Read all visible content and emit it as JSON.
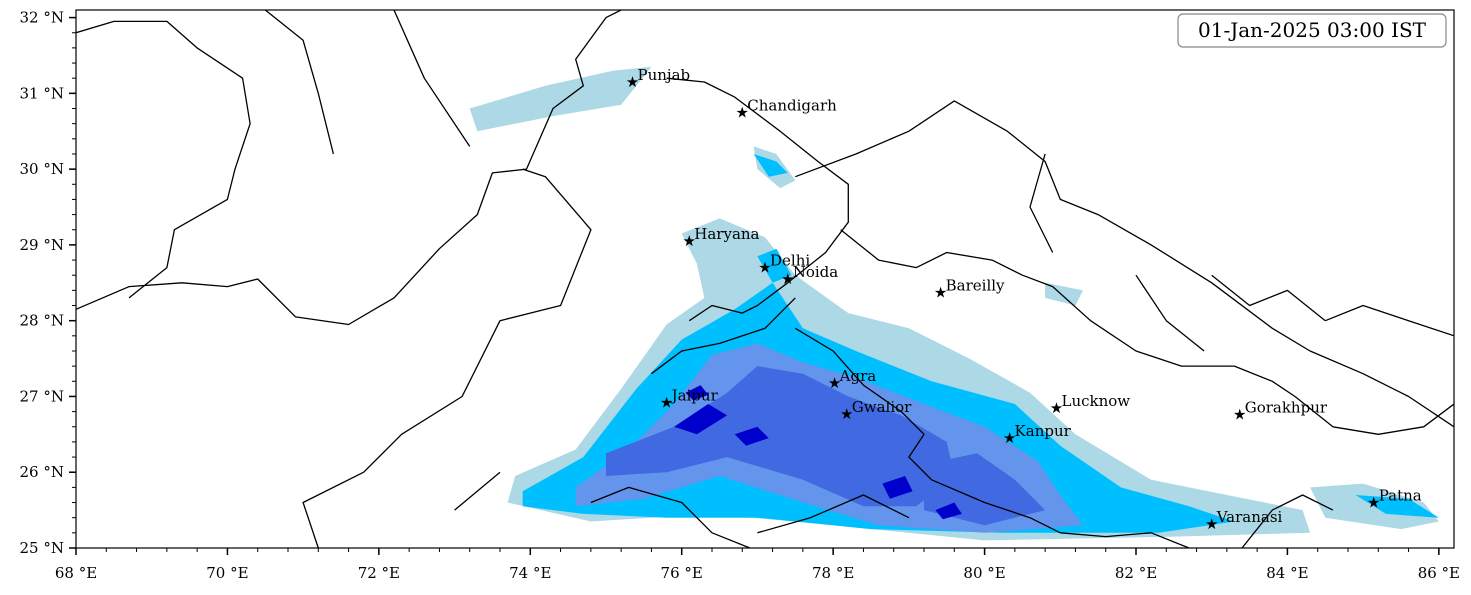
{
  "timestamp_label": "01-Jan-2025 03:00 IST",
  "colors": {
    "level1": "#add8e6",
    "level2": "#00bfff",
    "level3": "#6495ed",
    "level4": "#4169e1",
    "level5": "#0000cd",
    "boundary": "#000000"
  },
  "axes": {
    "lon_min": 68,
    "lon_max": 86.2,
    "lat_min": 25,
    "lat_max": 32.1,
    "x_ticks": [
      {
        "value": 68,
        "label": "68 °E"
      },
      {
        "value": 70,
        "label": "70 °E"
      },
      {
        "value": 72,
        "label": "72 °E"
      },
      {
        "value": 74,
        "label": "74 °E"
      },
      {
        "value": 76,
        "label": "76 °E"
      },
      {
        "value": 78,
        "label": "78 °E"
      },
      {
        "value": 80,
        "label": "80 °E"
      },
      {
        "value": 82,
        "label": "82 °E"
      },
      {
        "value": 84,
        "label": "84 °E"
      },
      {
        "value": 86,
        "label": "86 °E"
      }
    ],
    "y_ticks": [
      {
        "value": 25,
        "label": "25 °N"
      },
      {
        "value": 26,
        "label": "26 °N"
      },
      {
        "value": 27,
        "label": "27 °N"
      },
      {
        "value": 28,
        "label": "28 °N"
      },
      {
        "value": 29,
        "label": "29 °N"
      },
      {
        "value": 30,
        "label": "30 °N"
      },
      {
        "value": 31,
        "label": "31 °N"
      },
      {
        "value": 32,
        "label": "32 °N"
      }
    ]
  },
  "cities": [
    {
      "name": "Punjab",
      "lon": 75.35,
      "lat": 31.15
    },
    {
      "name": "Chandigarh",
      "lon": 76.8,
      "lat": 30.75
    },
    {
      "name": "Haryana",
      "lon": 76.1,
      "lat": 29.05
    },
    {
      "name": "Delhi",
      "lon": 77.1,
      "lat": 28.7
    },
    {
      "name": "Noida",
      "lon": 77.4,
      "lat": 28.55
    },
    {
      "name": "Bareilly",
      "lon": 79.42,
      "lat": 28.37
    },
    {
      "name": "Agra",
      "lon": 78.02,
      "lat": 27.18
    },
    {
      "name": "Jaipur",
      "lon": 75.8,
      "lat": 26.92
    },
    {
      "name": "Gwalior",
      "lon": 78.18,
      "lat": 26.77
    },
    {
      "name": "Lucknow",
      "lon": 80.95,
      "lat": 26.85
    },
    {
      "name": "Kanpur",
      "lon": 80.33,
      "lat": 26.45
    },
    {
      "name": "Gorakhpur",
      "lon": 83.37,
      "lat": 26.76
    },
    {
      "name": "Varanasi",
      "lon": 83.0,
      "lat": 25.32
    },
    {
      "name": "Patna",
      "lon": 85.14,
      "lat": 25.6
    }
  ],
  "rain_regions": [
    {
      "level": 1,
      "polygons": [
        [
          [
            73.8,
            25.95
          ],
          [
            74.6,
            26.3
          ],
          [
            75.2,
            27.1
          ],
          [
            75.8,
            27.95
          ],
          [
            76.3,
            28.3
          ],
          [
            76.2,
            28.75
          ],
          [
            76.0,
            29.15
          ],
          [
            76.5,
            29.35
          ],
          [
            77.1,
            29.1
          ],
          [
            77.5,
            28.6
          ],
          [
            78.2,
            28.1
          ],
          [
            79.0,
            27.9
          ],
          [
            79.8,
            27.5
          ],
          [
            80.6,
            27.05
          ],
          [
            81.2,
            26.5
          ],
          [
            82.2,
            25.9
          ],
          [
            83.2,
            25.7
          ],
          [
            84.2,
            25.5
          ],
          [
            84.3,
            25.2
          ],
          [
            82.5,
            25.15
          ],
          [
            80.0,
            25.1
          ],
          [
            78.0,
            25.3
          ],
          [
            76.4,
            25.45
          ],
          [
            74.8,
            25.35
          ],
          [
            73.7,
            25.6
          ]
        ],
        [
          [
            73.2,
            30.8
          ],
          [
            74.2,
            31.1
          ],
          [
            75.1,
            31.3
          ],
          [
            75.6,
            31.35
          ],
          [
            75.2,
            30.85
          ],
          [
            74.3,
            30.7
          ],
          [
            73.3,
            30.5
          ]
        ],
        [
          [
            76.95,
            30.3
          ],
          [
            77.25,
            30.2
          ],
          [
            77.5,
            29.85
          ],
          [
            77.3,
            29.75
          ],
          [
            77.0,
            30.0
          ]
        ],
        [
          [
            84.3,
            25.8
          ],
          [
            85.0,
            25.85
          ],
          [
            85.8,
            25.6
          ],
          [
            86.0,
            25.35
          ],
          [
            85.5,
            25.25
          ],
          [
            84.5,
            25.4
          ]
        ],
        [
          [
            80.8,
            28.5
          ],
          [
            81.3,
            28.4
          ],
          [
            81.2,
            28.2
          ],
          [
            80.8,
            28.3
          ]
        ]
      ]
    },
    {
      "level": 2,
      "polygons": [
        [
          [
            73.9,
            25.75
          ],
          [
            74.7,
            26.2
          ],
          [
            75.4,
            27.1
          ],
          [
            76.0,
            27.75
          ],
          [
            76.7,
            28.15
          ],
          [
            77.2,
            28.5
          ],
          [
            77.6,
            27.9
          ],
          [
            78.3,
            27.6
          ],
          [
            79.3,
            27.2
          ],
          [
            80.4,
            26.9
          ],
          [
            81.0,
            26.35
          ],
          [
            81.8,
            25.8
          ],
          [
            82.7,
            25.55
          ],
          [
            83.3,
            25.35
          ],
          [
            82.3,
            25.2
          ],
          [
            80.2,
            25.2
          ],
          [
            78.5,
            25.25
          ],
          [
            77.0,
            25.4
          ],
          [
            75.8,
            25.4
          ],
          [
            74.7,
            25.45
          ],
          [
            73.9,
            25.55
          ]
        ],
        [
          [
            77.0,
            28.85
          ],
          [
            77.25,
            28.95
          ],
          [
            77.45,
            28.6
          ],
          [
            77.2,
            28.5
          ]
        ],
        [
          [
            84.9,
            25.7
          ],
          [
            85.6,
            25.65
          ],
          [
            86.0,
            25.4
          ],
          [
            85.3,
            25.45
          ]
        ],
        [
          [
            76.95,
            30.2
          ],
          [
            77.25,
            30.1
          ],
          [
            77.4,
            29.95
          ],
          [
            77.15,
            29.9
          ]
        ]
      ]
    },
    {
      "level": 3,
      "polygons": [
        [
          [
            74.6,
            25.8
          ],
          [
            75.3,
            26.3
          ],
          [
            75.9,
            26.9
          ],
          [
            76.4,
            27.55
          ],
          [
            77.0,
            27.7
          ],
          [
            77.6,
            27.45
          ],
          [
            78.3,
            27.25
          ],
          [
            79.2,
            26.9
          ],
          [
            80.0,
            26.6
          ],
          [
            80.7,
            26.15
          ],
          [
            81.0,
            25.7
          ],
          [
            81.3,
            25.3
          ],
          [
            80.0,
            25.2
          ],
          [
            78.6,
            25.3
          ],
          [
            77.6,
            25.6
          ],
          [
            76.5,
            25.95
          ],
          [
            75.5,
            25.65
          ],
          [
            74.6,
            25.55
          ]
        ]
      ]
    },
    {
      "level": 4,
      "polygons": [
        [
          [
            75.0,
            26.25
          ],
          [
            75.9,
            26.6
          ],
          [
            76.6,
            27.05
          ],
          [
            77.0,
            27.4
          ],
          [
            77.6,
            27.3
          ],
          [
            78.2,
            27.0
          ],
          [
            78.9,
            26.75
          ],
          [
            79.5,
            26.4
          ],
          [
            79.6,
            25.95
          ],
          [
            79.1,
            25.55
          ],
          [
            78.4,
            25.55
          ],
          [
            77.6,
            25.9
          ],
          [
            76.6,
            26.2
          ],
          [
            75.8,
            26.0
          ],
          [
            75.0,
            25.95
          ]
        ],
        [
          [
            79.2,
            26.1
          ],
          [
            79.9,
            26.25
          ],
          [
            80.4,
            25.9
          ],
          [
            80.8,
            25.5
          ],
          [
            80.0,
            25.3
          ],
          [
            79.2,
            25.5
          ]
        ]
      ]
    },
    {
      "level": 5,
      "polygons": [
        [
          [
            75.9,
            26.6
          ],
          [
            76.35,
            26.9
          ],
          [
            76.6,
            26.75
          ],
          [
            76.2,
            26.5
          ]
        ],
        [
          [
            76.7,
            26.5
          ],
          [
            77.0,
            26.6
          ],
          [
            77.15,
            26.45
          ],
          [
            76.85,
            26.35
          ]
        ],
        [
          [
            78.65,
            25.85
          ],
          [
            78.95,
            25.95
          ],
          [
            79.05,
            25.75
          ],
          [
            78.75,
            25.65
          ]
        ],
        [
          [
            79.35,
            25.5
          ],
          [
            79.6,
            25.6
          ],
          [
            79.7,
            25.45
          ],
          [
            79.45,
            25.38
          ]
        ],
        [
          [
            76.05,
            27.05
          ],
          [
            76.25,
            27.15
          ],
          [
            76.35,
            27.02
          ],
          [
            76.15,
            26.95
          ]
        ]
      ]
    }
  ],
  "boundaries": [
    [
      [
        68,
        28.15
      ],
      [
        68.7,
        28.45
      ],
      [
        69.4,
        28.5
      ],
      [
        70.0,
        28.45
      ],
      [
        70.4,
        28.55
      ],
      [
        70.9,
        28.05
      ],
      [
        71.6,
        27.95
      ],
      [
        72.2,
        28.3
      ],
      [
        72.8,
        28.95
      ],
      [
        73.3,
        29.4
      ],
      [
        73.5,
        29.95
      ],
      [
        73.95,
        30.0
      ],
      [
        74.3,
        30.8
      ],
      [
        74.7,
        31.1
      ],
      [
        74.6,
        31.45
      ],
      [
        75.0,
        32.0
      ],
      [
        75.4,
        32.2
      ]
    ],
    [
      [
        68,
        31.8
      ],
      [
        68.5,
        31.95
      ],
      [
        69.2,
        31.95
      ],
      [
        69.6,
        31.6
      ],
      [
        70.2,
        31.2
      ],
      [
        70.3,
        30.6
      ],
      [
        70.1,
        30.0
      ],
      [
        70.0,
        29.6
      ],
      [
        69.3,
        29.2
      ],
      [
        69.2,
        28.7
      ],
      [
        68.7,
        28.3
      ]
    ],
    [
      [
        70.5,
        32.1
      ],
      [
        71.0,
        31.7
      ],
      [
        71.2,
        31.0
      ],
      [
        71.4,
        30.2
      ]
    ],
    [
      [
        72.2,
        32.1
      ],
      [
        72.6,
        31.2
      ],
      [
        73.2,
        30.3
      ]
    ],
    [
      [
        71.2,
        25.0
      ],
      [
        71.0,
        25.6
      ],
      [
        71.8,
        26.0
      ],
      [
        72.3,
        26.5
      ],
      [
        73.1,
        27.0
      ],
      [
        73.6,
        28.0
      ],
      [
        74.4,
        28.2
      ],
      [
        74.8,
        29.2
      ],
      [
        74.2,
        29.9
      ],
      [
        73.9,
        30.0
      ]
    ],
    [
      [
        73.0,
        25.5
      ],
      [
        73.6,
        26.0
      ]
    ],
    [
      [
        75.8,
        31.2
      ],
      [
        76.3,
        31.15
      ],
      [
        76.7,
        30.95
      ],
      [
        77.3,
        30.5
      ],
      [
        77.8,
        30.1
      ],
      [
        78.2,
        29.8
      ],
      [
        78.2,
        29.3
      ],
      [
        77.9,
        28.9
      ],
      [
        77.4,
        28.5
      ],
      [
        77.0,
        28.2
      ],
      [
        76.8,
        28.1
      ],
      [
        76.4,
        28.2
      ],
      [
        76.1,
        28.0
      ]
    ],
    [
      [
        77.5,
        29.9
      ],
      [
        78.3,
        30.2
      ],
      [
        79.0,
        30.5
      ],
      [
        79.6,
        30.9
      ],
      [
        80.3,
        30.5
      ],
      [
        80.8,
        30.1
      ],
      [
        81.0,
        29.6
      ],
      [
        81.5,
        29.4
      ],
      [
        82.2,
        29.0
      ],
      [
        83.0,
        28.5
      ],
      [
        83.8,
        27.9
      ],
      [
        84.3,
        27.6
      ],
      [
        85.0,
        27.3
      ],
      [
        85.6,
        27.0
      ],
      [
        86.2,
        26.6
      ]
    ],
    [
      [
        78.1,
        29.2
      ],
      [
        78.6,
        28.8
      ],
      [
        79.1,
        28.7
      ],
      [
        79.5,
        28.9
      ],
      [
        80.1,
        28.8
      ],
      [
        80.5,
        28.6
      ],
      [
        80.9,
        28.45
      ],
      [
        81.4,
        28.0
      ],
      [
        82.0,
        27.6
      ],
      [
        82.6,
        27.4
      ],
      [
        83.3,
        27.4
      ],
      [
        83.8,
        27.2
      ],
      [
        84.1,
        27.0
      ],
      [
        84.6,
        26.6
      ],
      [
        85.2,
        26.5
      ],
      [
        85.8,
        26.6
      ],
      [
        86.2,
        26.9
      ]
    ],
    [
      [
        77.5,
        27.9
      ],
      [
        78.0,
        27.6
      ],
      [
        78.4,
        27.15
      ],
      [
        78.9,
        26.8
      ],
      [
        79.2,
        26.5
      ],
      [
        79.0,
        26.2
      ],
      [
        79.3,
        25.9
      ],
      [
        80.0,
        25.6
      ],
      [
        80.6,
        25.4
      ],
      [
        81.0,
        25.2
      ],
      [
        81.6,
        25.15
      ],
      [
        82.2,
        25.2
      ],
      [
        82.7,
        25.0
      ]
    ],
    [
      [
        75.6,
        27.3
      ],
      [
        76.0,
        27.6
      ],
      [
        76.5,
        27.7
      ],
      [
        77.1,
        27.9
      ],
      [
        77.5,
        28.3
      ]
    ],
    [
      [
        74.8,
        25.6
      ],
      [
        75.3,
        25.8
      ],
      [
        76.0,
        25.6
      ],
      [
        76.4,
        25.2
      ],
      [
        76.9,
        25.0
      ]
    ],
    [
      [
        77.0,
        25.2
      ],
      [
        77.7,
        25.4
      ],
      [
        78.4,
        25.7
      ],
      [
        79.0,
        25.4
      ]
    ],
    [
      [
        83.4,
        25.0
      ],
      [
        83.8,
        25.5
      ],
      [
        84.2,
        25.7
      ],
      [
        84.6,
        25.5
      ]
    ],
    [
      [
        82.0,
        28.6
      ],
      [
        82.4,
        28.0
      ],
      [
        82.9,
        27.6
      ]
    ],
    [
      [
        80.8,
        30.2
      ],
      [
        80.6,
        29.5
      ],
      [
        80.9,
        28.9
      ]
    ],
    [
      [
        83.0,
        28.6
      ],
      [
        83.5,
        28.2
      ],
      [
        84.0,
        28.4
      ],
      [
        84.5,
        28.0
      ]
    ],
    [
      [
        84.5,
        28.0
      ],
      [
        85.0,
        28.2
      ],
      [
        85.6,
        28.0
      ],
      [
        86.2,
        27.8
      ]
    ]
  ]
}
